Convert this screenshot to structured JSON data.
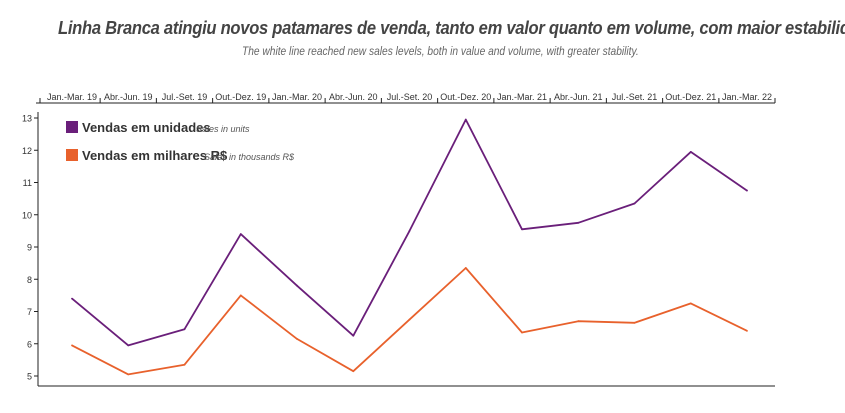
{
  "header": {
    "title": "Linha Branca atingiu novos patamares de venda, tanto em valor quanto em volume, com maior estabilidade.",
    "subtitle": "The white line reached new sales levels, both in value and volume, with greater stability."
  },
  "chart_data": {
    "type": "line",
    "title": "Linha Branca atingiu novos patamares de venda, tanto em valor quanto em volume, com maior estabilidade.",
    "subtitle": "The white line reached new sales levels, both in value and volume, with greater stability.",
    "categories": [
      "Jan.-Mar. 19",
      "Abr.-Jun. 19",
      "Jul.-Set. 19",
      "Out.-Dez. 19",
      "Jan.-Mar. 20",
      "Abr.-Jun. 20",
      "Jul.-Set. 20",
      "Out.-Dez. 20",
      "Jan.-Mar. 21",
      "Abr.-Jun. 21",
      "Jul.-Set. 21",
      "Out.-Dez. 21",
      "Jan.-Mar. 22"
    ],
    "yticks": [
      5,
      6,
      7,
      8,
      9,
      10,
      11,
      12,
      13
    ],
    "ylim": [
      4.8,
      13.2
    ],
    "grid": false,
    "legend_position": "top-left",
    "series": [
      {
        "name": "Vendas em unidades",
        "name_en": "Sales in units",
        "color": "#6a1f7a",
        "values": [
          7.4,
          5.95,
          6.45,
          9.4,
          7.8,
          6.25,
          9.5,
          12.95,
          9.55,
          9.75,
          10.35,
          11.95,
          10.75
        ]
      },
      {
        "name": "Vendas em milhares R$",
        "name_en": "Sales in thousands R$",
        "color": "#e8612c",
        "values": [
          5.95,
          5.05,
          5.35,
          7.5,
          6.15,
          5.15,
          6.75,
          8.35,
          6.35,
          6.7,
          6.65,
          7.25,
          6.4
        ]
      }
    ]
  }
}
